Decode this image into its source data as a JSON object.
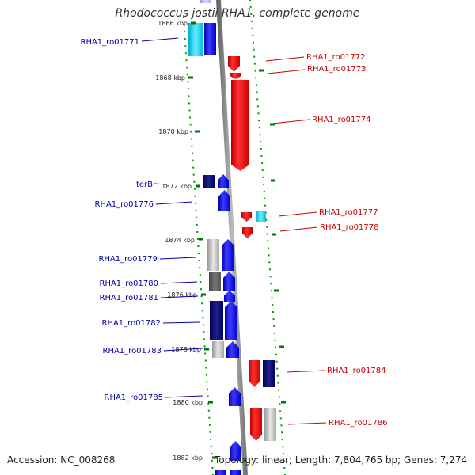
{
  "title": "Rhodococcus jostii RHA1, complete genome",
  "footer": {
    "accession": "Accession: NC_008268",
    "summary": "Topology: linear; Length: 7,804,765 bp; Genes: 7,274"
  },
  "ticks": [
    "1866 kbp",
    "1868 kbp",
    "1870 kbp",
    "1872 kbp",
    "1874 kbp",
    "1876 kbp",
    "1878 kbp",
    "1880 kbp",
    "1882 kbp"
  ],
  "genes_left": [
    "RHA1_ro01771",
    "terB",
    "RHA1_ro01776",
    "RHA1_ro01779",
    "RHA1_ro01780",
    "RHA1_ro01781",
    "RHA1_ro01782",
    "RHA1_ro01783",
    "RHA1_ro01785"
  ],
  "genes_right": [
    "RHA1_ro01772",
    "RHA1_ro01773",
    "RHA1_ro01774",
    "RHA1_ro01777",
    "RHA1_ro01778",
    "RHA1_ro01784",
    "RHA1_ro01786"
  ],
  "colors": {
    "forward_strand": "#0000ee",
    "reverse_strand": "#ee0000",
    "left_label": "#0000aa",
    "right_label": "#cc0000",
    "tick": "#007700",
    "backbone": "#888888"
  }
}
